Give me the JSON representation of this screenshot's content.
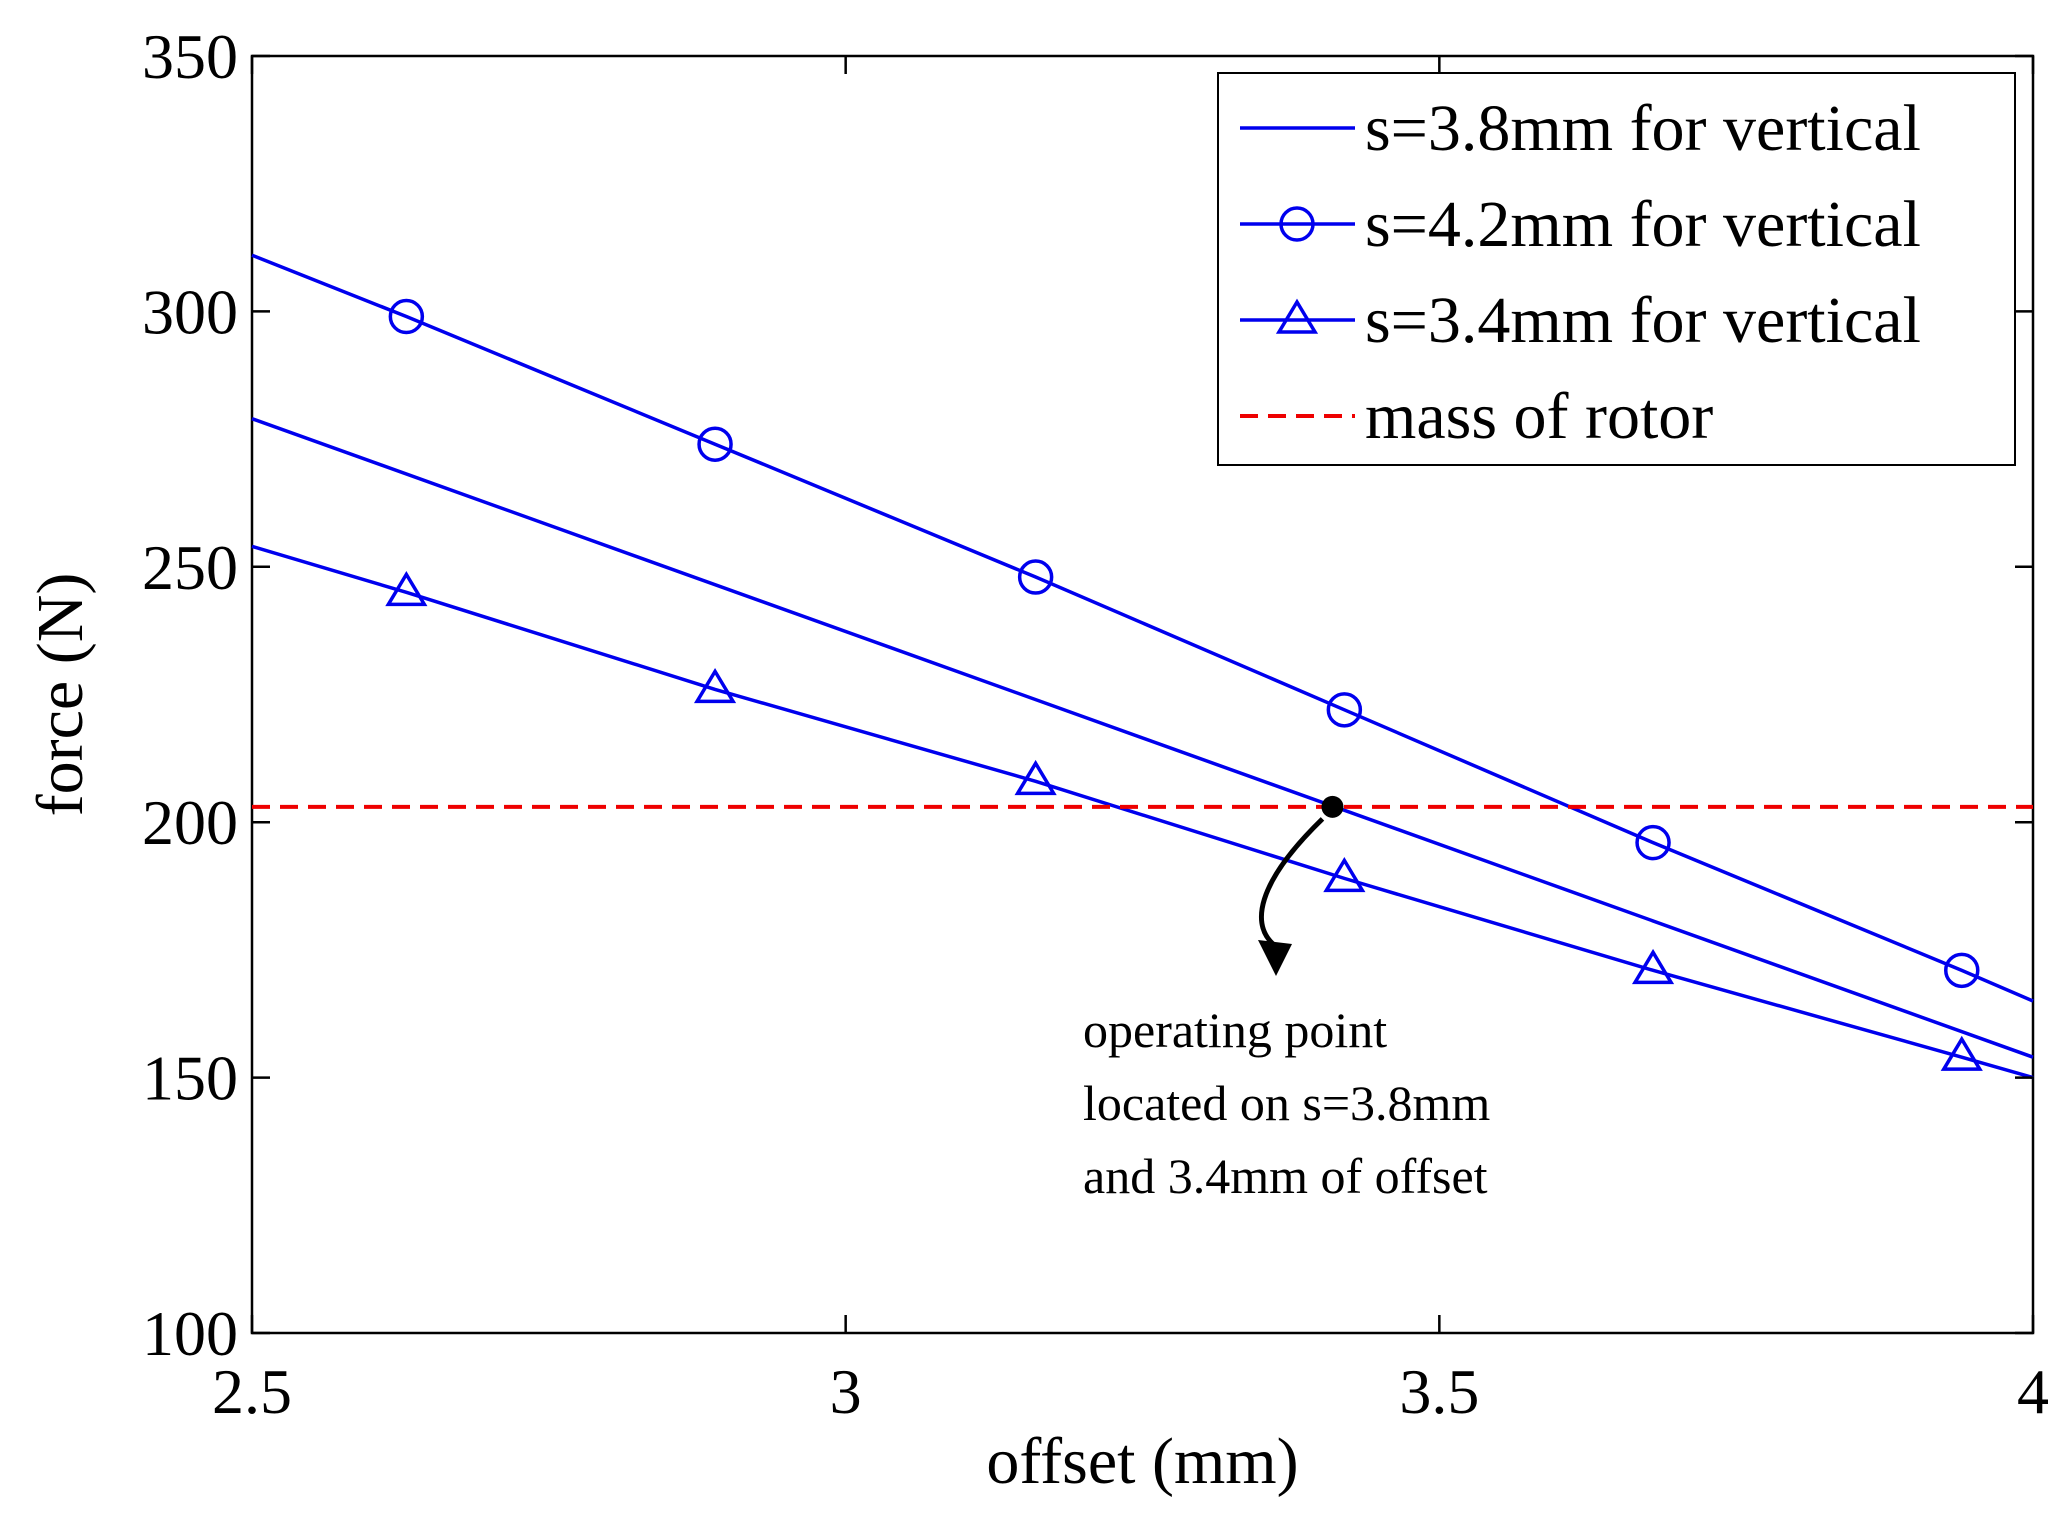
{
  "chart_data": {
    "type": "line",
    "title": "",
    "xlabel": "offset (mm)",
    "ylabel": "force (N)",
    "xlim": [
      2.5,
      4
    ],
    "ylim": [
      100,
      350
    ],
    "xticks": [
      2.5,
      3,
      3.5,
      4
    ],
    "yticks": [
      100,
      150,
      200,
      250,
      300,
      350
    ],
    "xtick_labels": [
      "2.5",
      "3",
      "3.5",
      "4"
    ],
    "ytick_labels": [
      "100",
      "150",
      "200",
      "250",
      "300",
      "350"
    ],
    "grid": false,
    "legend_position": "top-right",
    "colors": {
      "series": "#0000ee",
      "reference": "#ee0000",
      "annotation": "#000000"
    },
    "series": [
      {
        "name": "s=3.8mm for vertical",
        "marker": "none",
        "x": [
          2.5,
          4.0
        ],
        "y": [
          279,
          154
        ]
      },
      {
        "name": "s=4.2mm for vertical",
        "marker": "circle",
        "x": [
          2.5,
          2.63,
          2.89,
          3.16,
          3.42,
          3.68,
          3.94,
          4.0
        ],
        "y": [
          311,
          299,
          274,
          248,
          222,
          196,
          171,
          165
        ]
      },
      {
        "name": "s=3.4mm for vertical",
        "marker": "triangle",
        "x": [
          2.5,
          2.63,
          2.89,
          3.16,
          3.42,
          3.68,
          3.94,
          4.0
        ],
        "y": [
          254,
          245,
          226,
          208,
          189,
          171,
          154,
          150
        ]
      },
      {
        "name": "mass of rotor",
        "marker": "none",
        "dashed": true,
        "x": [
          2.5,
          4.0
        ],
        "y": [
          203,
          203
        ]
      }
    ],
    "annotation": {
      "point": {
        "x": 3.41,
        "y": 203
      },
      "lines": [
        "operating point",
        "located on s=3.8mm",
        "and 3.4mm of offset"
      ]
    }
  }
}
